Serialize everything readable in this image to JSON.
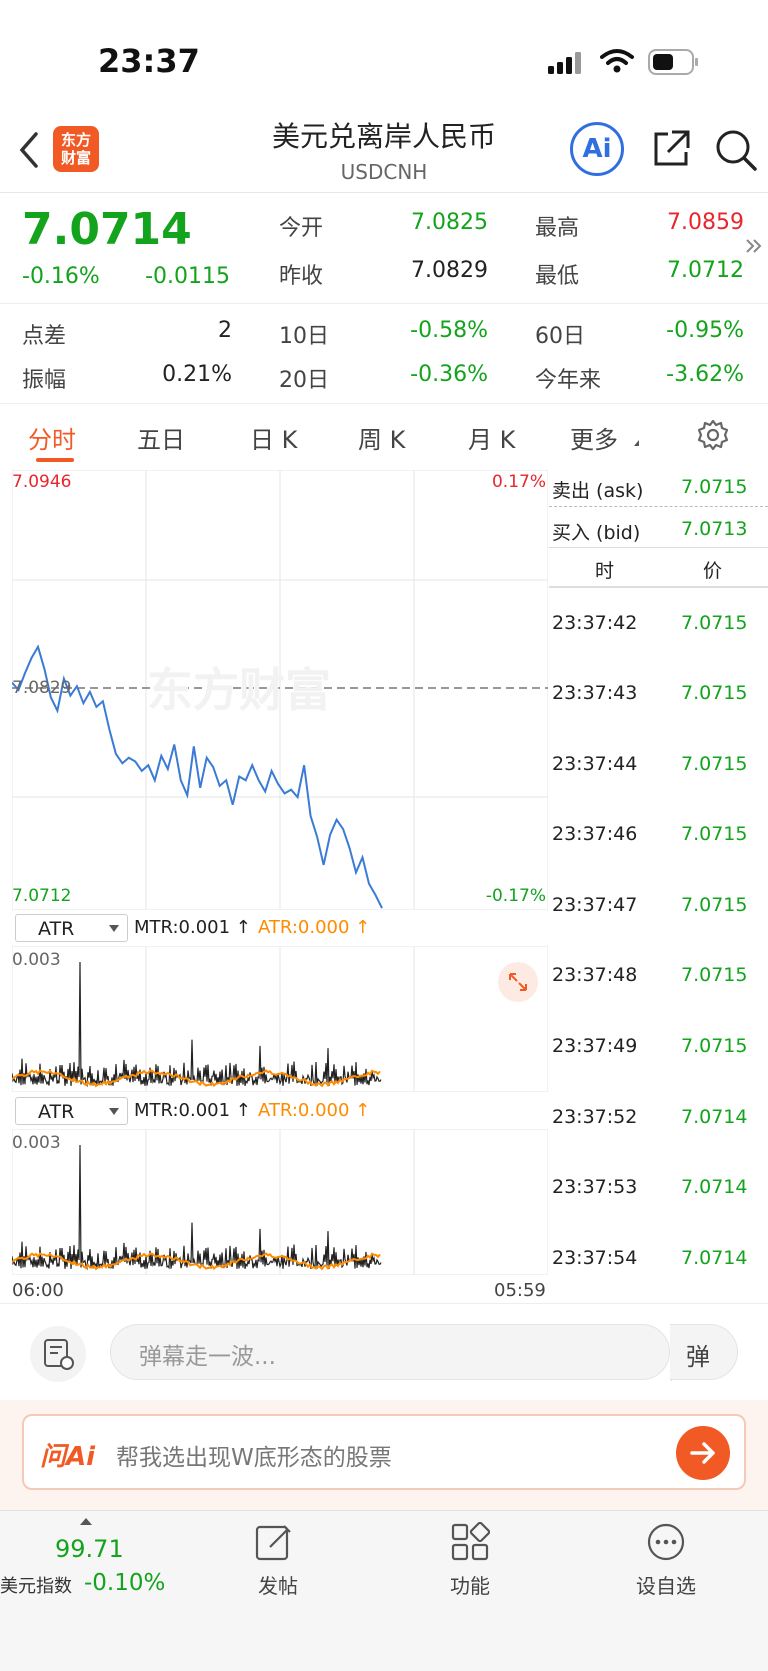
{
  "status_bar": {
    "time": "23:37"
  },
  "header": {
    "logo_text_1": "东方",
    "logo_text_2": "财富",
    "title": "美元兑离岸人民币",
    "subtitle": "USDCNH",
    "ai_label": "Ai"
  },
  "quote": {
    "price": "7.0714",
    "change_pct": "-0.16%",
    "change": "-0.0115",
    "open_label": "今开",
    "open": "7.0825",
    "high_label": "最高",
    "high": "7.0859",
    "prev_close_label": "昨收",
    "prev_close": "7.0829",
    "low_label": "最低",
    "low": "7.0712",
    "spread_label": "点差",
    "spread": "2",
    "d10_label": "10日",
    "d10": "-0.58%",
    "d60_label": "60日",
    "d60": "-0.95%",
    "amplitude_label": "振幅",
    "amplitude": "0.21%",
    "d20_label": "20日",
    "d20": "-0.36%",
    "ytd_label": "今年来",
    "ytd": "-3.62%"
  },
  "tabs": [
    "分时",
    "五日",
    "日 K",
    "周 K",
    "月 K",
    "更多"
  ],
  "chart_data": {
    "type": "line",
    "y_max_label": "7.0946",
    "y_min_label": "7.0712",
    "pct_max_label": "0.17%",
    "pct_min_label": "-0.17%",
    "baseline_label": "7.0829",
    "watermark": "东方财富",
    "x_start": "06:00",
    "x_end": "05:59",
    "ylim": [
      7.0712,
      7.0946
    ],
    "baseline": 7.0829,
    "series": [
      {
        "values": [
          7.0833,
          7.0829,
          7.0838,
          7.0846,
          7.0852,
          7.084,
          7.0825,
          7.0818,
          7.0835,
          7.0826,
          7.0831,
          7.0822,
          7.0828,
          7.082,
          7.0823,
          7.0808,
          7.0795,
          7.079,
          7.0793,
          7.0791,
          7.0786,
          7.0789,
          7.0781,
          7.0794,
          7.0787,
          7.08,
          7.0781,
          7.0773,
          7.0799,
          7.0777,
          7.0793,
          7.0788,
          7.0778,
          7.0781,
          7.0768,
          7.0783,
          7.0781,
          7.0789,
          7.0781,
          7.0775,
          7.0786,
          7.0779,
          7.0774,
          7.0776,
          7.0772,
          7.0789,
          7.0762,
          7.0751,
          7.0736,
          7.0752,
          7.076,
          7.0755,
          7.0745,
          7.0732,
          7.074,
          7.0726,
          7.072,
          7.0713
        ]
      }
    ]
  },
  "atr_panels": [
    {
      "selector": "ATR",
      "mtr": "MTR:0.001 ↑",
      "atr": "ATR:0.000 ↑",
      "y_max": "0.003"
    },
    {
      "selector": "ATR",
      "mtr": "MTR:0.001 ↑",
      "atr": "ATR:0.000 ↑",
      "y_max": "0.003"
    }
  ],
  "order_book": {
    "ask_label": "卖出 (ask)",
    "ask": "7.0715",
    "bid_label": "买入 (bid)",
    "bid": "7.0713",
    "col_time": "时",
    "col_price": "价"
  },
  "ticks": [
    {
      "time": "23:37:42",
      "price": "7.0715"
    },
    {
      "time": "23:37:43",
      "price": "7.0715"
    },
    {
      "time": "23:37:44",
      "price": "7.0715"
    },
    {
      "time": "23:37:46",
      "price": "7.0715"
    },
    {
      "time": "23:37:47",
      "price": "7.0715"
    },
    {
      "time": "23:37:48",
      "price": "7.0715"
    },
    {
      "time": "23:37:49",
      "price": "7.0715"
    },
    {
      "time": "23:37:52",
      "price": "7.0714"
    },
    {
      "time": "23:37:53",
      "price": "7.0714"
    },
    {
      "time": "23:37:54",
      "price": "7.0714"
    }
  ],
  "danmaku": {
    "placeholder": "弹幕走一波...",
    "toggle": "弹"
  },
  "ask_ai": {
    "logo": "问Ai",
    "prompt": "帮我选出现W底形态的股票"
  },
  "bottom_nav": {
    "index_value": "99.71",
    "index_name": "美元指数",
    "index_change": "-0.10%",
    "post": "发帖",
    "functions": "功能",
    "watchlist": "设自选"
  },
  "colors": {
    "up": "#e8262b",
    "down": "#13a31c",
    "accent": "#f15a24",
    "line": "#3a7bd5",
    "atr": "#ff8c00"
  }
}
